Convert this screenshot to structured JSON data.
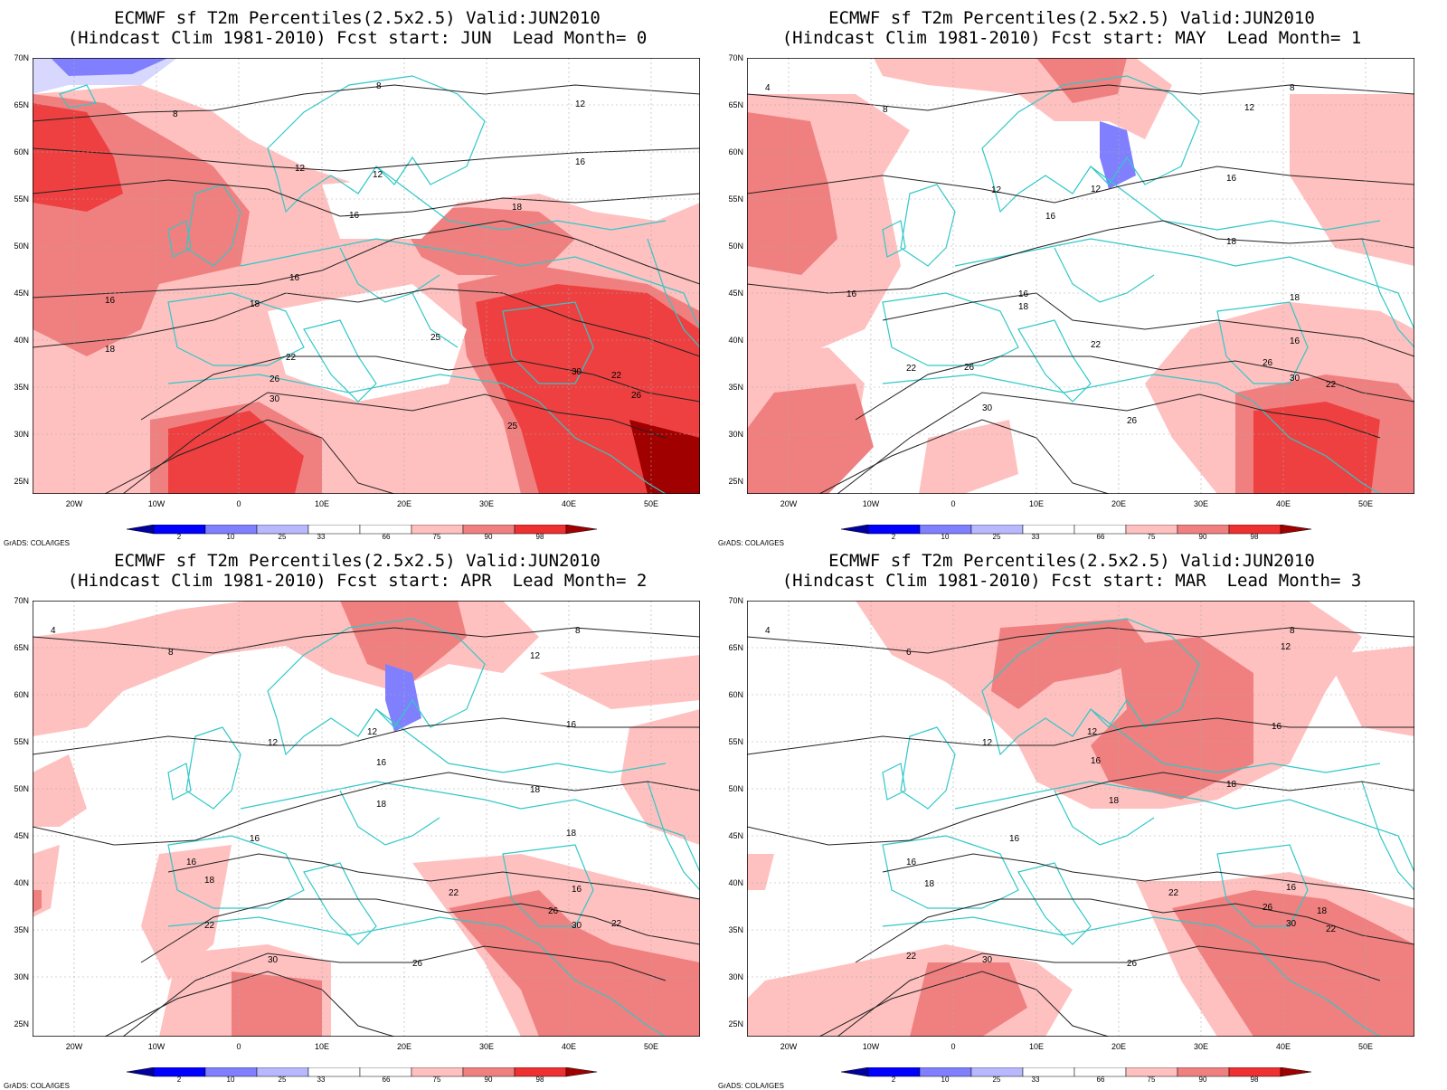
{
  "panels": [
    {
      "id": "p1",
      "title_line1": "ECMWF sf T2m Percentiles(2.5x2.5) Valid:JUN2010",
      "title_line2": "(Hindcast Clim 1981-2010) Fcst start: JUN  Lead Month= 0"
    },
    {
      "id": "p2",
      "title_line1": "ECMWF sf T2m Percentiles(2.5x2.5) Valid:JUN2010",
      "title_line2": "(Hindcast Clim 1981-2010) Fcst start: MAY  Lead Month= 1"
    },
    {
      "id": "p3",
      "title_line1": "ECMWF sf T2m Percentiles(2.5x2.5) Valid:JUN2010",
      "title_line2": "(Hindcast Clim 1981-2010) Fcst start: APR  Lead Month= 2"
    },
    {
      "id": "p4",
      "title_line1": "ECMWF sf T2m Percentiles(2.5x2.5) Valid:JUN2010",
      "title_line2": "(Hindcast Clim 1981-2010) Fcst start: MAR  Lead Month= 3"
    }
  ],
  "axes": {
    "lat_labels": [
      "70N",
      "65N",
      "60N",
      "55N",
      "50N",
      "45N",
      "40N",
      "35N",
      "30N",
      "25N"
    ],
    "lon_labels": [
      "20W",
      "10W",
      "0",
      "10E",
      "20E",
      "30E",
      "40E",
      "50E"
    ]
  },
  "colorbar": {
    "labels": [
      "2",
      "10",
      "25",
      "33",
      "66",
      "75",
      "90",
      "98"
    ],
    "colors": [
      "#0000a0",
      "#2020ff",
      "#8080ff",
      "#b8b8ff",
      "#d8d8ff",
      "#ffffff",
      "#ffc0c0",
      "#f08080",
      "#ee4040",
      "#a00000"
    ]
  },
  "credit": "GrADS: COLA/IGES",
  "contour_labels": {
    "p1": [
      "8",
      "12",
      "16",
      "18",
      "22",
      "26",
      "30",
      "25",
      "30",
      "22",
      "26",
      "8",
      "12",
      "16",
      "16",
      "12",
      "16",
      "18",
      "18",
      "25"
    ],
    "p2": [
      "4",
      "8",
      "12",
      "16",
      "16",
      "18",
      "22",
      "26",
      "30",
      "26",
      "30",
      "22",
      "16",
      "18",
      "12",
      "8",
      "12",
      "16",
      "16",
      "18",
      "22",
      "26"
    ],
    "p3": [
      "4",
      "8",
      "12",
      "16",
      "16",
      "18",
      "22",
      "30",
      "26",
      "22",
      "30",
      "26",
      "8",
      "12",
      "16",
      "18",
      "16",
      "18",
      "12",
      "16",
      "18",
      "22"
    ],
    "p4": [
      "4",
      "6",
      "12",
      "16",
      "16",
      "18",
      "22",
      "30",
      "26",
      "22",
      "30",
      "26",
      "8",
      "12",
      "16",
      "18",
      "16",
      "18",
      "12",
      "16",
      "18",
      "22"
    ]
  }
}
